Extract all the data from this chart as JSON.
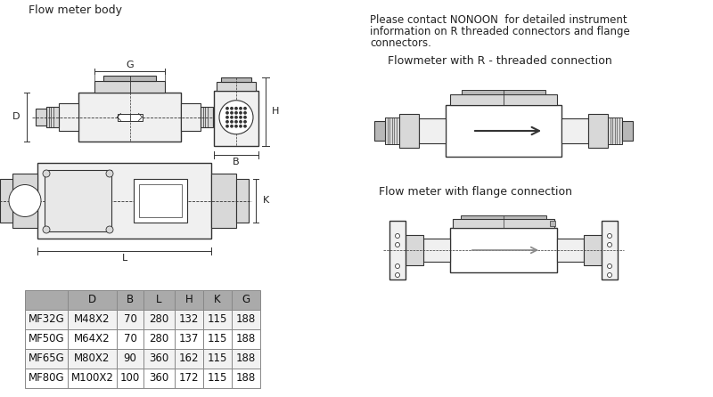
{
  "title": "Flow meter body",
  "bg_color": "#ffffff",
  "table_header_bg": "#aaaaaa",
  "table_row_bg_odd": "#f2f2f2",
  "table_row_bg_even": "#ffffff",
  "table_border": "#888888",
  "table_cols": [
    "",
    "D",
    "B",
    "L",
    "H",
    "K",
    "G"
  ],
  "table_col_widths": [
    48,
    55,
    30,
    35,
    32,
    32,
    32
  ],
  "table_rows": [
    [
      "MF32G",
      "M48X2",
      "70",
      "280",
      "132",
      "115",
      "188"
    ],
    [
      "MF50G",
      "M64X2",
      "70",
      "280",
      "137",
      "115",
      "188"
    ],
    [
      "MF65G",
      "M80X2",
      "90",
      "360",
      "162",
      "115",
      "188"
    ],
    [
      "MF80G",
      "M100X2",
      "100",
      "360",
      "172",
      "115",
      "188"
    ]
  ],
  "right_text_line1": "Please contact NONOON  for detailed instrument",
  "right_text_line2": "information on R threaded connectors and flange",
  "right_text_line3": "connectors.",
  "threaded_label": "Flowmeter with R - threaded connection",
  "flange_label": "Flow meter with flange connection",
  "line_color": "#333333",
  "text_color": "#222222",
  "fill_light": "#f0f0f0",
  "fill_mid": "#d8d8d8",
  "fill_dark": "#b8b8b8"
}
